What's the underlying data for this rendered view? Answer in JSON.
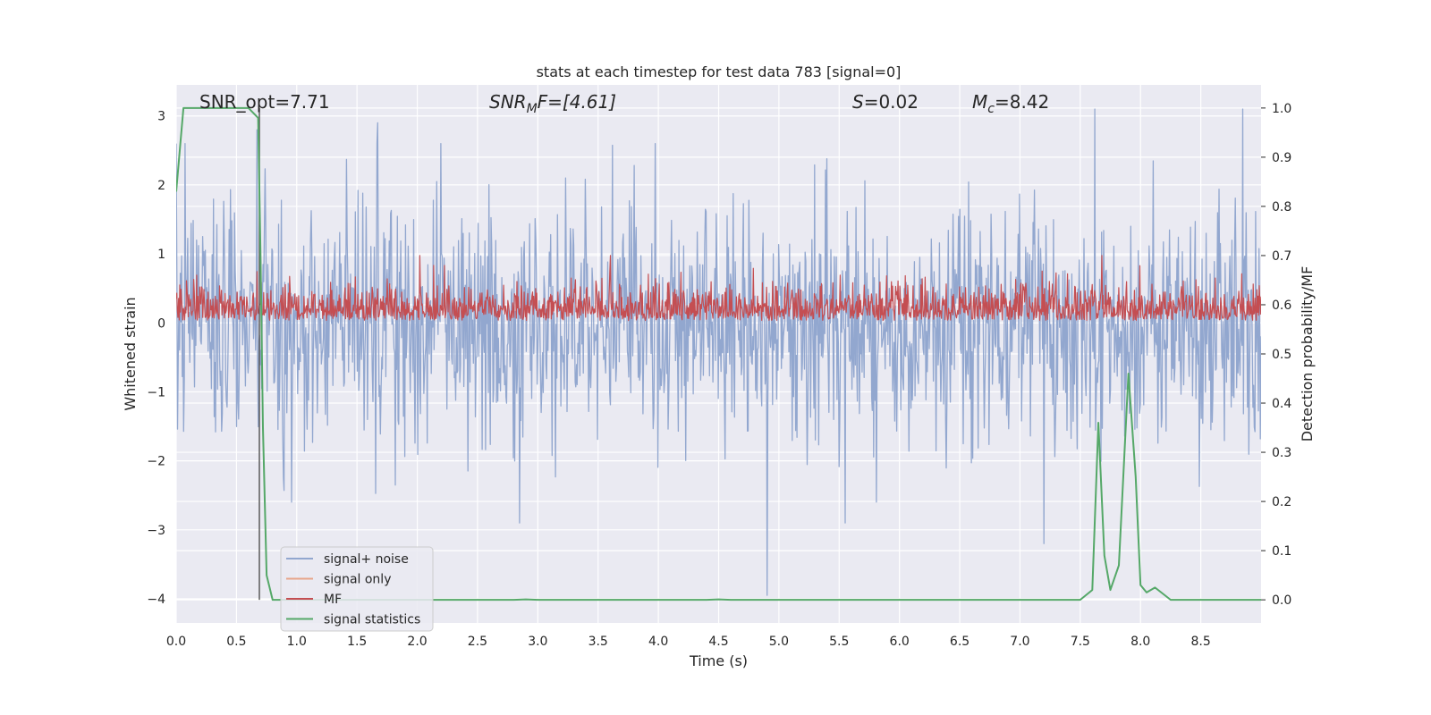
{
  "chart_data": {
    "type": "line",
    "title": "stats at each timestep for test data 783 [signal=0]",
    "xlabel": "Time (s)",
    "ylabel": "Whitened strain",
    "y2label": "Detection probability/MF",
    "xlim": [
      0,
      9.0
    ],
    "ylim": [
      -4.35,
      3.45
    ],
    "y2lim": [
      -0.047,
      1.047
    ],
    "grid": true,
    "legend_position": "lower-left",
    "x_ticks": [
      "0.0",
      "0.5",
      "1.0",
      "1.5",
      "2.0",
      "2.5",
      "3.0",
      "3.5",
      "4.0",
      "4.5",
      "5.0",
      "5.5",
      "6.0",
      "6.5",
      "7.0",
      "7.5",
      "8.0",
      "8.5"
    ],
    "y_ticks": [
      "3",
      "2",
      "1",
      "0",
      "−1",
      "−2",
      "−3",
      "−4"
    ],
    "y2_ticks": [
      "1.0",
      "0.9",
      "0.8",
      "0.7",
      "0.6",
      "0.5",
      "0.4",
      "0.3",
      "0.2",
      "0.1",
      "0.0"
    ],
    "annotations": {
      "snr_opt": "SNR_opt=7.71",
      "snr_mf_base": "SNR",
      "snr_mf_sub": "M",
      "snr_mf_rest": "F=[4.61]",
      "s_symbol": "S",
      "s_value": "=0.02",
      "mc_symbol": "M",
      "mc_sub": "c",
      "mc_value": "=8.42"
    },
    "series": [
      {
        "name": "signal+ noise",
        "color": "#92a7cf",
        "axis": "left",
        "noise_sigma": 0.85,
        "samples": 1600,
        "x_range": [
          0,
          9.0
        ],
        "spikes": [
          {
            "x": 2.85,
            "y": -2.9
          },
          {
            "x": 4.9,
            "y": -3.95
          },
          {
            "x": 5.55,
            "y": -2.9
          },
          {
            "x": 7.2,
            "y": -3.2
          },
          {
            "x": 7.62,
            "y": 3.1
          },
          {
            "x": 8.85,
            "y": 3.1
          },
          {
            "x": 0.67,
            "y": 2.8
          },
          {
            "x": 1.67,
            "y": 2.9
          }
        ]
      },
      {
        "name": "signal only",
        "color": "#e8a58a",
        "axis": "left",
        "values": []
      },
      {
        "name": "MF",
        "color": "#c44e52",
        "axis": "right",
        "baseline": 0.58,
        "samples": 1800,
        "x_range": [
          0,
          9.0
        ],
        "spikes": [
          {
            "x": 2.02,
            "y": 0.7
          },
          {
            "x": 3.6,
            "y": 0.7
          },
          {
            "x": 7.68,
            "y": 0.7
          }
        ]
      },
      {
        "name": "signal statistics",
        "color": "#55a868",
        "axis": "right",
        "x": [
          0.0,
          0.06,
          0.1,
          0.2,
          0.3,
          0.4,
          0.5,
          0.6,
          0.68,
          0.7,
          0.72,
          0.75,
          0.8,
          0.85,
          0.9,
          1.0,
          2.8,
          2.9,
          3.0,
          4.4,
          4.5,
          4.6,
          7.5,
          7.6,
          7.65,
          7.7,
          7.75,
          7.82,
          7.9,
          7.96,
          8.0,
          8.05,
          8.12,
          8.25,
          9.0
        ],
        "y": [
          0.83,
          1.0,
          1.0,
          1.0,
          1.0,
          1.0,
          1.0,
          1.0,
          0.98,
          0.7,
          0.35,
          0.05,
          0.0,
          0.0,
          0.0,
          0.0,
          0.0,
          0.001,
          0.0,
          0.0,
          0.001,
          0.0,
          0.0,
          0.02,
          0.36,
          0.09,
          0.02,
          0.07,
          0.46,
          0.25,
          0.03,
          0.015,
          0.025,
          0.0,
          0.0
        ]
      }
    ],
    "vline": {
      "x": 0.69,
      "color": "#5a5a5a"
    }
  }
}
